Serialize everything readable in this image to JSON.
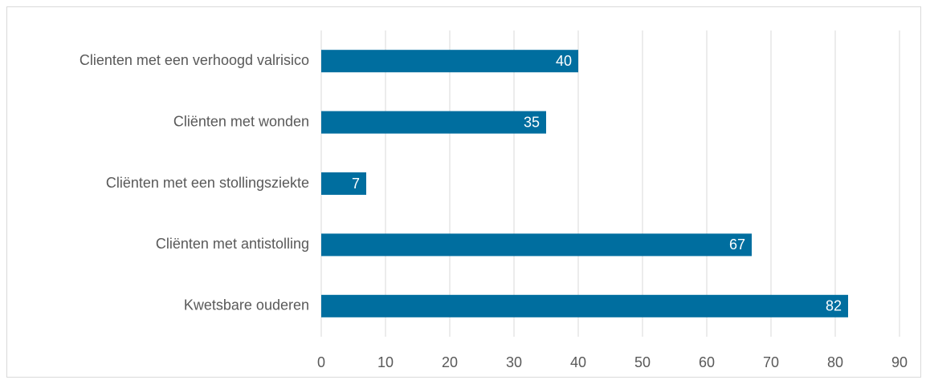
{
  "chart_data": {
    "type": "bar",
    "orientation": "horizontal",
    "categories": [
      "Clienten met een verhoogd valrisico",
      "Cliënten met wonden",
      "Cliënten met een stollingsziekte",
      "Cliënten met antistolling",
      "Kwetsbare ouderen"
    ],
    "values": [
      40,
      35,
      7,
      67,
      82
    ],
    "color": "#006e9f",
    "xlim": [
      0,
      90
    ],
    "xticks": [
      0,
      10,
      20,
      30,
      40,
      50,
      60,
      70,
      80,
      90
    ],
    "grid": true
  }
}
